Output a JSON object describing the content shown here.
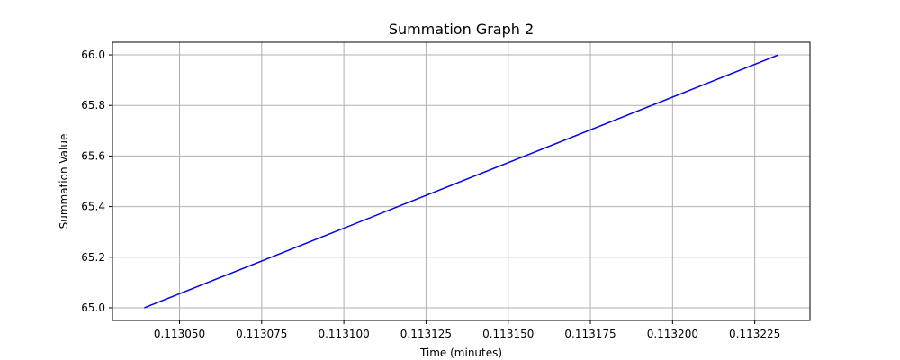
{
  "chart_data": {
    "type": "line",
    "title": "Summation Graph 2",
    "xlabel": "Time (minutes)",
    "ylabel": "Summation Value",
    "xlim": [
      0.1130296,
      0.1132418
    ],
    "ylim": [
      64.95,
      66.05
    ],
    "x_ticks": [
      0.11305,
      0.113075,
      0.1131,
      0.113125,
      0.11315,
      0.113175,
      0.1132,
      0.113225
    ],
    "x_tick_labels": [
      "0.113050",
      "0.113075",
      "0.113100",
      "0.113125",
      "0.113150",
      "0.113175",
      "0.113200",
      "0.113225"
    ],
    "y_ticks": [
      65.0,
      65.2,
      65.4,
      65.6,
      65.8,
      66.0
    ],
    "y_tick_labels": [
      "65.0",
      "65.2",
      "65.4",
      "65.6",
      "65.8",
      "66.0"
    ],
    "grid": true,
    "series": [
      {
        "color": "#0000ff",
        "x": [
          0.1130393,
          0.1132322
        ],
        "y": [
          65.0,
          66.0
        ]
      }
    ],
    "colors": {
      "grid": "#b0b0b0",
      "axes": "#000000"
    }
  }
}
